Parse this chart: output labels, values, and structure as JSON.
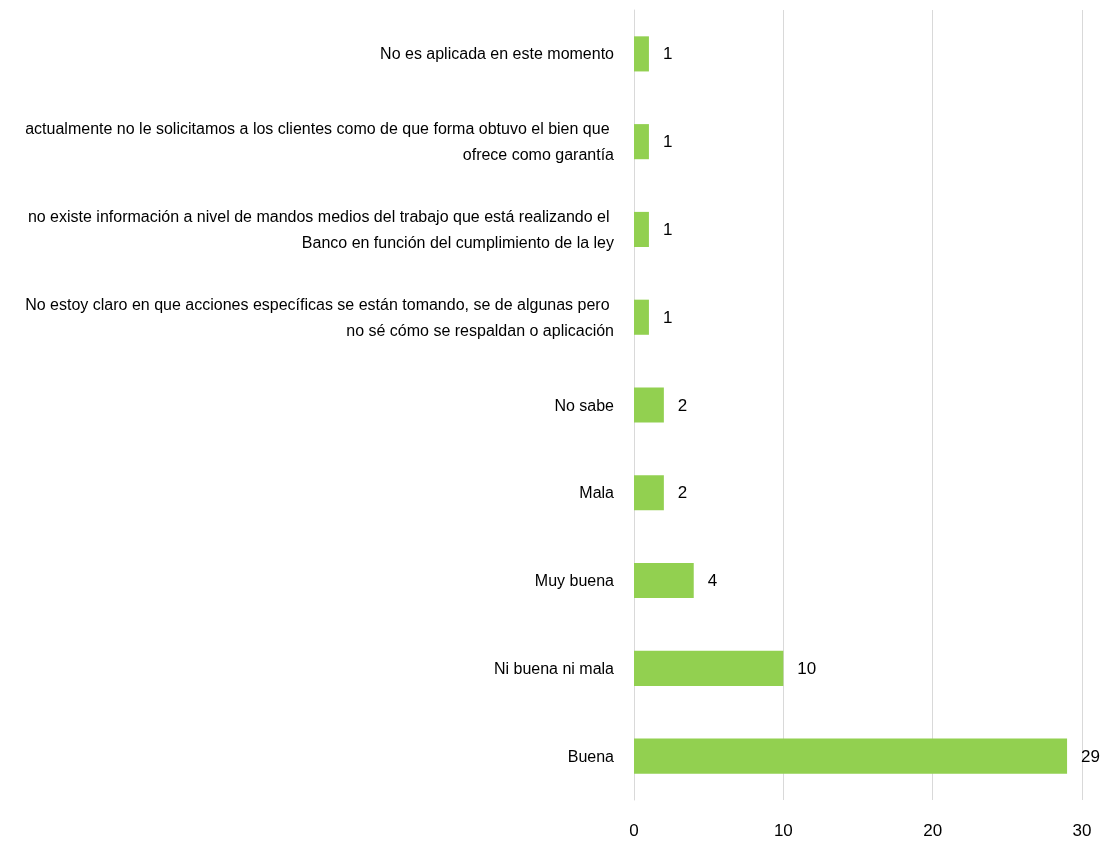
{
  "chart_data": {
    "type": "bar",
    "orientation": "horizontal",
    "categories": [
      "No es aplicada en este momento",
      "actualmente no le solicitamos a los clientes como de que forma obtuvo el bien que ofrece como garantía",
      "no existe información a nivel de mandos medios del trabajo que está realizando el Banco en función del cumplimiento de la ley",
      "No estoy claro en que acciones específicas se están tomando, se de algunas pero no sé cómo se respaldan o aplicación",
      "No sabe",
      "Mala",
      "Muy buena",
      "Ni buena ni mala",
      "Buena"
    ],
    "values": [
      1,
      1,
      1,
      1,
      2,
      2,
      4,
      10,
      29
    ],
    "color": "#92d050",
    "xlim": [
      0,
      30
    ],
    "xticks": [
      0,
      10,
      20,
      30
    ],
    "grid": "x",
    "data_labels": true
  }
}
